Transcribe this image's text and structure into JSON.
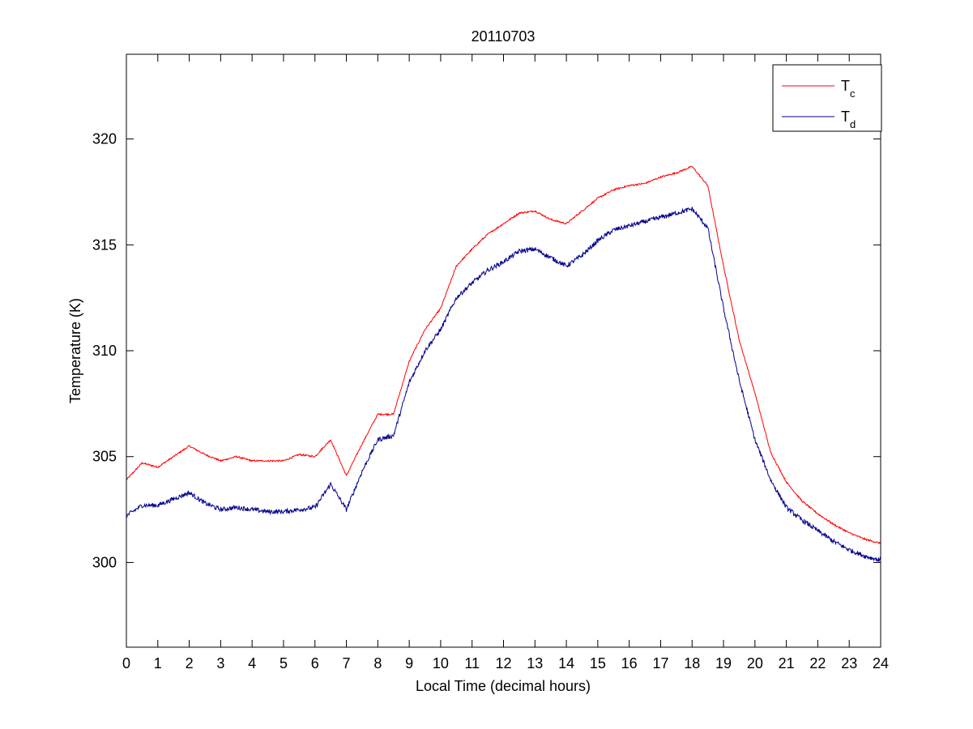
{
  "chart_data": {
    "type": "line",
    "title": "20110703",
    "xlabel": "Local Time (decimal hours)",
    "ylabel": "Temperature (K)",
    "xlim": [
      0,
      24
    ],
    "ylim": [
      296,
      324
    ],
    "xticks": [
      0,
      1,
      2,
      3,
      4,
      5,
      6,
      7,
      8,
      9,
      10,
      11,
      12,
      13,
      14,
      15,
      16,
      17,
      18,
      19,
      20,
      21,
      22,
      23,
      24
    ],
    "yticks": [
      300,
      305,
      310,
      315,
      320
    ],
    "grid": false,
    "legend_position": "top-right",
    "x": [
      0,
      0.5,
      1,
      1.5,
      2,
      2.5,
      3,
      3.5,
      4,
      4.5,
      5,
      5.5,
      6,
      6.5,
      7,
      7.5,
      8,
      8.5,
      9,
      9.5,
      10,
      10.5,
      11,
      11.5,
      12,
      12.5,
      13,
      13.5,
      14,
      14.5,
      15,
      15.5,
      16,
      16.5,
      17,
      17.5,
      18,
      18.5,
      19,
      19.5,
      20,
      20.5,
      21,
      21.5,
      22,
      22.5,
      23,
      23.5,
      24
    ],
    "series": [
      {
        "name": "T",
        "subscript": "c",
        "color": "#ff0000",
        "values": [
          303.9,
          304.7,
          304.5,
          305.0,
          305.5,
          305.1,
          304.8,
          305.0,
          304.8,
          304.8,
          304.8,
          305.1,
          305.0,
          305.8,
          304.1,
          305.6,
          307.0,
          307.0,
          309.5,
          311.0,
          312.0,
          314.0,
          314.8,
          315.5,
          316.0,
          316.5,
          316.6,
          316.2,
          316.0,
          316.6,
          317.2,
          317.6,
          317.8,
          317.9,
          318.2,
          318.4,
          318.7,
          317.8,
          314.0,
          310.5,
          308.0,
          305.2,
          303.8,
          302.9,
          302.3,
          301.8,
          301.4,
          301.1,
          300.9
        ]
      },
      {
        "name": "T",
        "subscript": "d",
        "color": "#00008b",
        "values": [
          302.2,
          302.7,
          302.7,
          303.0,
          303.3,
          302.8,
          302.5,
          302.6,
          302.5,
          302.4,
          302.4,
          302.5,
          302.6,
          303.7,
          302.5,
          304.3,
          305.8,
          306.0,
          308.5,
          310.0,
          311.0,
          312.5,
          313.2,
          313.8,
          314.2,
          314.7,
          314.8,
          314.4,
          314.0,
          314.5,
          315.2,
          315.7,
          315.9,
          316.1,
          316.3,
          316.5,
          316.7,
          315.8,
          312.0,
          308.6,
          305.8,
          303.9,
          302.6,
          302.0,
          301.5,
          301.0,
          300.6,
          300.3,
          300.1
        ]
      }
    ]
  }
}
